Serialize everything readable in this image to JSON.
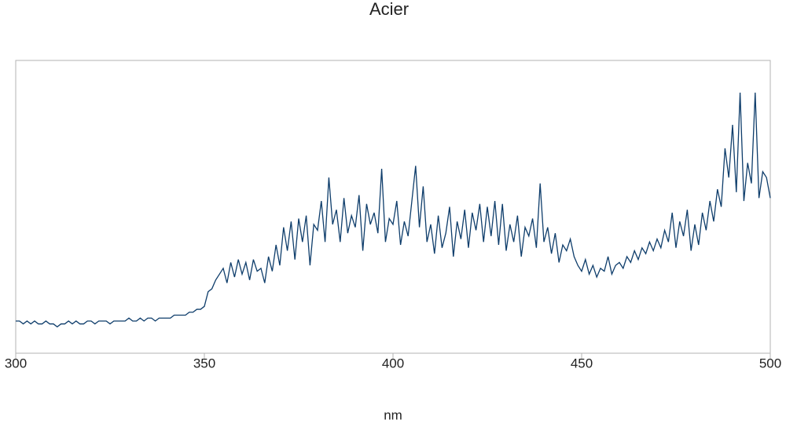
{
  "chart_data": {
    "type": "line",
    "title": "Acier",
    "x_label": "nm",
    "x": [
      300,
      301,
      302,
      303,
      304,
      305,
      306,
      307,
      308,
      309,
      310,
      311,
      312,
      313,
      314,
      315,
      316,
      317,
      318,
      319,
      320,
      321,
      322,
      323,
      324,
      325,
      326,
      327,
      328,
      329,
      330,
      331,
      332,
      333,
      334,
      335,
      336,
      337,
      338,
      339,
      340,
      341,
      342,
      343,
      344,
      345,
      346,
      347,
      348,
      349,
      350,
      351,
      352,
      353,
      354,
      355,
      356,
      357,
      358,
      359,
      360,
      361,
      362,
      363,
      364,
      365,
      366,
      367,
      368,
      369,
      370,
      371,
      372,
      373,
      374,
      375,
      376,
      377,
      378,
      379,
      380,
      381,
      382,
      383,
      384,
      385,
      386,
      387,
      388,
      389,
      390,
      391,
      392,
      393,
      394,
      395,
      396,
      397,
      398,
      399,
      400,
      401,
      402,
      403,
      404,
      405,
      406,
      407,
      408,
      409,
      410,
      411,
      412,
      413,
      414,
      415,
      416,
      417,
      418,
      419,
      420,
      421,
      422,
      423,
      424,
      425,
      426,
      427,
      428,
      429,
      430,
      431,
      432,
      433,
      434,
      435,
      436,
      437,
      438,
      439,
      440,
      441,
      442,
      443,
      444,
      445,
      446,
      447,
      448,
      449,
      450,
      451,
      452,
      453,
      454,
      455,
      456,
      457,
      458,
      459,
      460,
      461,
      462,
      463,
      464,
      465,
      466,
      467,
      468,
      469,
      470,
      471,
      472,
      473,
      474,
      475,
      476,
      477,
      478,
      479,
      480,
      481,
      482,
      483,
      484,
      485,
      486,
      487,
      488,
      489,
      490,
      491,
      492,
      493,
      494,
      495,
      496,
      497,
      498,
      499,
      500
    ],
    "values": [
      11,
      11,
      10,
      11,
      10,
      11,
      10,
      10,
      11,
      10,
      10,
      9,
      10,
      10,
      11,
      10,
      11,
      10,
      10,
      11,
      11,
      10,
      11,
      11,
      11,
      10,
      11,
      11,
      11,
      11,
      12,
      11,
      11,
      12,
      11,
      12,
      12,
      11,
      12,
      12,
      12,
      12,
      13,
      13,
      13,
      13,
      14,
      14,
      15,
      15,
      16,
      21,
      22,
      25,
      27,
      29,
      24,
      31,
      26,
      32,
      27,
      31,
      25,
      32,
      28,
      29,
      24,
      33,
      28,
      37,
      30,
      43,
      35,
      45,
      32,
      46,
      38,
      47,
      30,
      44,
      42,
      52,
      38,
      60,
      44,
      49,
      38,
      53,
      41,
      47,
      43,
      54,
      35,
      51,
      44,
      48,
      41,
      63,
      38,
      46,
      44,
      52,
      37,
      45,
      40,
      52,
      64,
      43,
      57,
      38,
      44,
      34,
      47,
      36,
      41,
      50,
      33,
      45,
      39,
      49,
      36,
      48,
      42,
      51,
      38,
      50,
      40,
      52,
      37,
      51,
      35,
      44,
      38,
      47,
      33,
      43,
      40,
      46,
      36,
      58,
      38,
      43,
      34,
      41,
      31,
      37,
      35,
      39,
      33,
      30,
      28,
      32,
      27,
      30,
      26,
      29,
      28,
      33,
      27,
      30,
      31,
      29,
      33,
      31,
      35,
      32,
      36,
      34,
      38,
      35,
      39,
      36,
      42,
      38,
      48,
      36,
      45,
      40,
      49,
      35,
      44,
      37,
      48,
      42,
      52,
      45,
      56,
      50,
      70,
      60,
      78,
      55,
      89,
      52,
      65,
      58,
      89,
      53,
      62,
      60,
      53
    ],
    "color": "#0e3d6b",
    "xlim": [
      300,
      500
    ],
    "xticks": [
      300,
      350,
      400,
      450,
      500
    ],
    "ylim": [
      0,
      100
    ]
  }
}
